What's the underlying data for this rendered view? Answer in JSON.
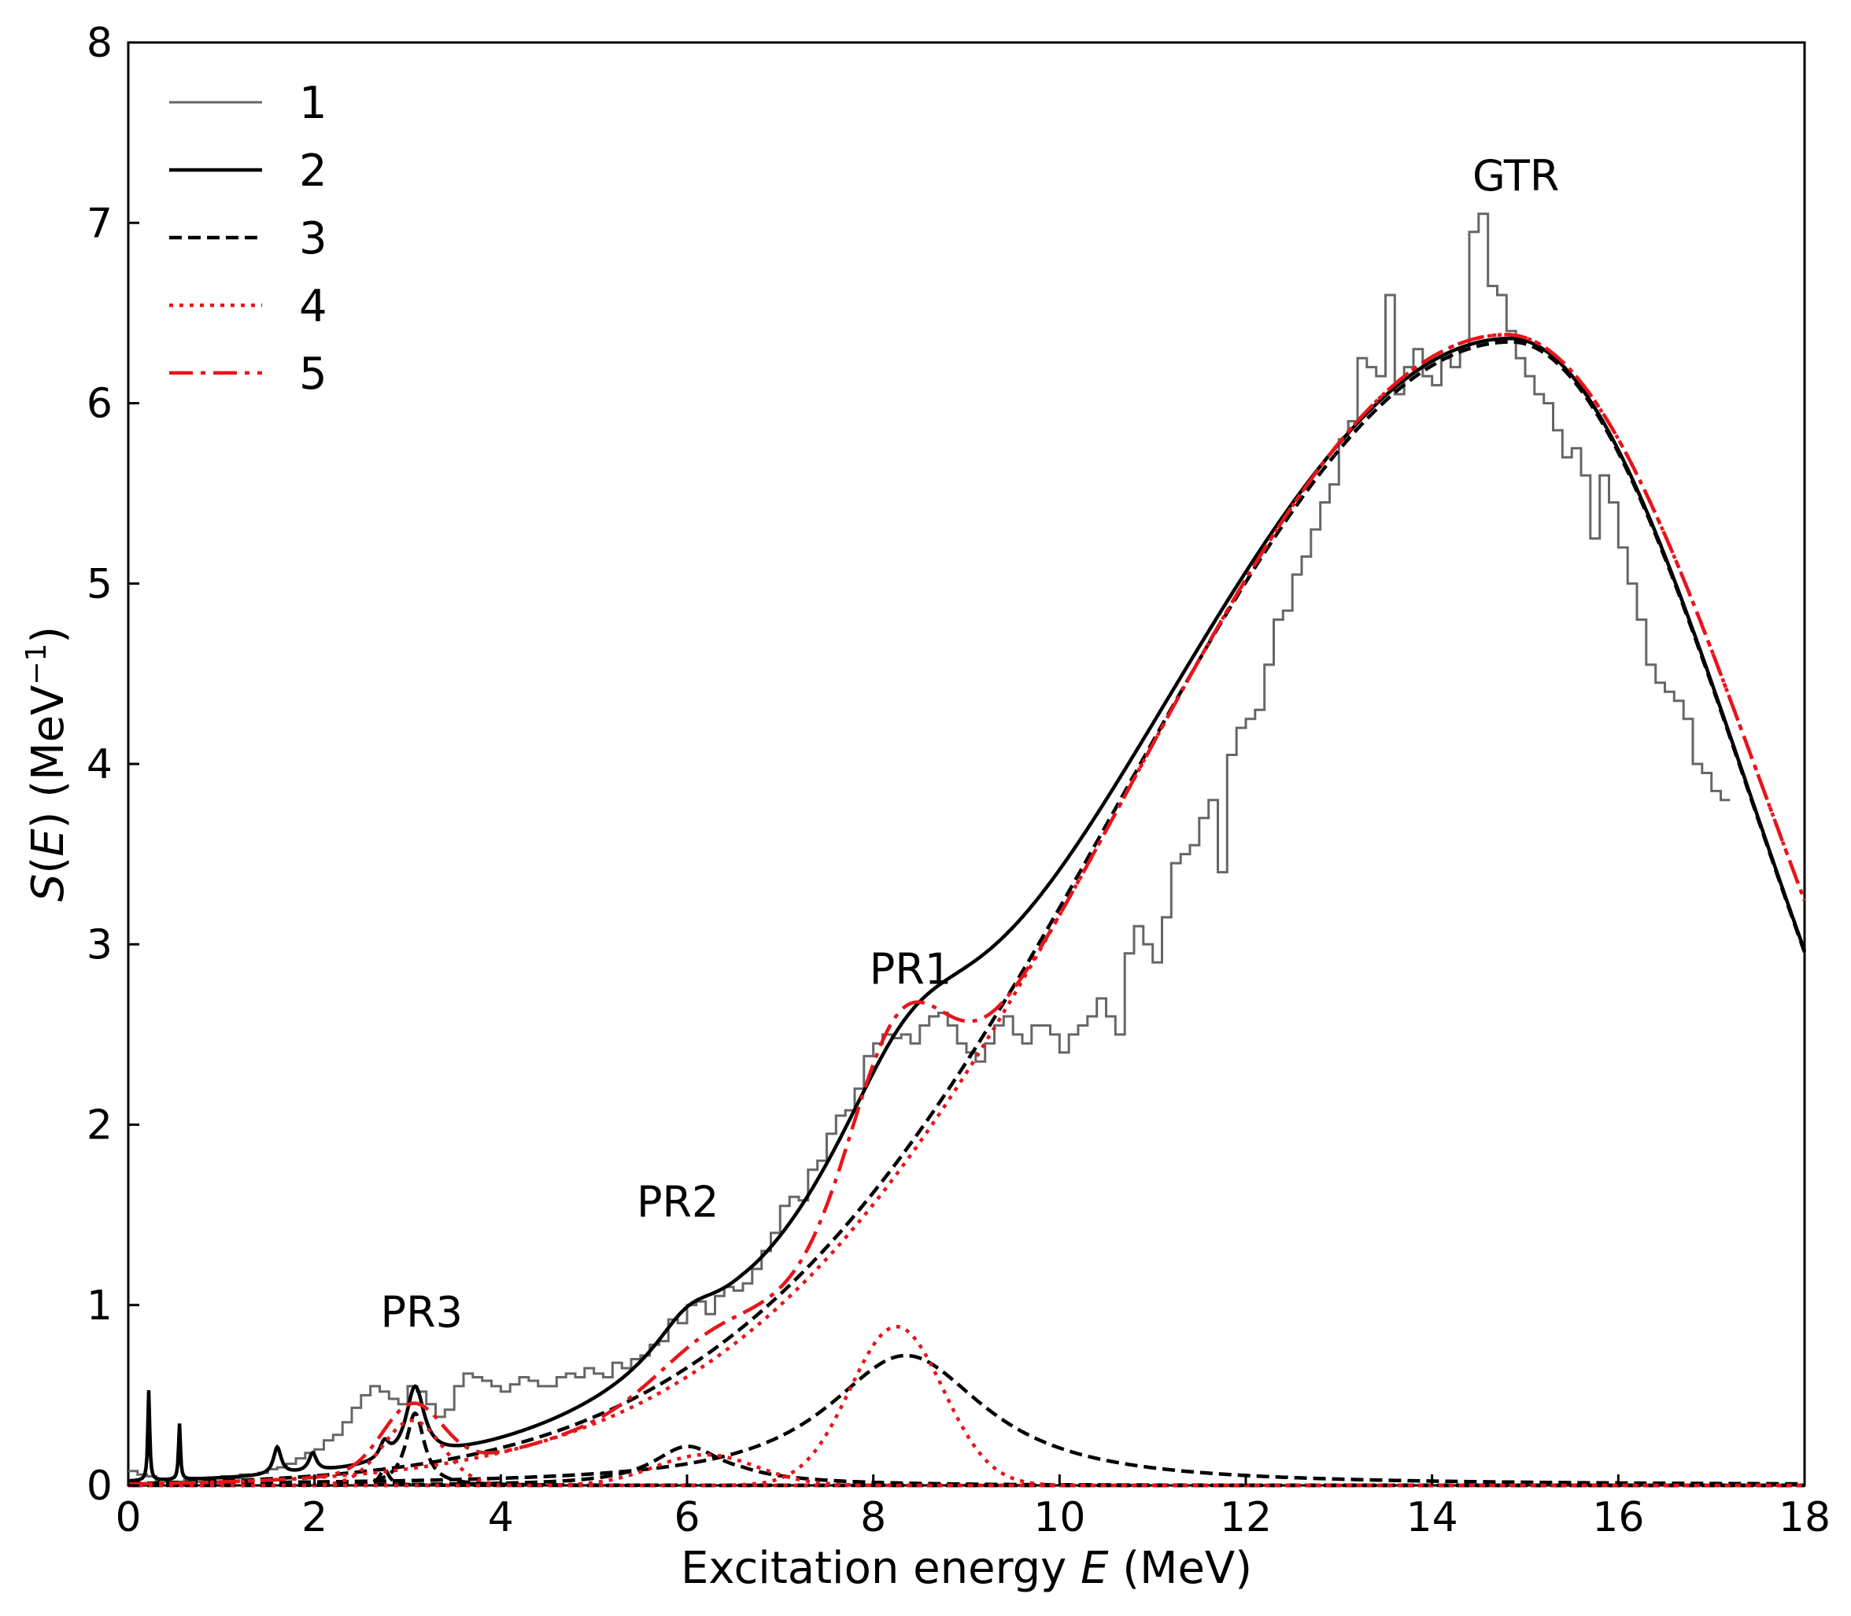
{
  "chart_data": {
    "type": "line",
    "xlabel_prefix": "Excitation energy ",
    "xlabel_var": "E",
    "xlabel_suffix": " (MeV)",
    "ylabel_var": "S",
    "ylabel_open": "(",
    "ylabel_arg": "E",
    "ylabel_close": ") (MeV",
    "ylabel_sup": "−1",
    "ylabel_end": ")",
    "xlim": [
      0,
      18
    ],
    "ylim": [
      0,
      8
    ],
    "xticks": [
      0,
      2,
      4,
      6,
      8,
      10,
      12,
      14,
      16,
      18
    ],
    "yticks": [
      0,
      1,
      2,
      3,
      4,
      5,
      6,
      7,
      8
    ],
    "grid": false,
    "legend_position": "top-left",
    "colors": {
      "gray": "#666666",
      "black": "#000000",
      "red": "#e8141a"
    },
    "legend": [
      {
        "label": "1",
        "color": "#666666",
        "style": "solid"
      },
      {
        "label": "2",
        "color": "#000000",
        "style": "solid"
      },
      {
        "label": "3",
        "color": "#000000",
        "style": "dashed"
      },
      {
        "label": "4",
        "color": "#e8141a",
        "style": "dotted"
      },
      {
        "label": "5",
        "color": "#e8141a",
        "style": "dashdot"
      }
    ],
    "annotations": [
      {
        "text": "GTR",
        "x": 14.9,
        "y": 7.18
      },
      {
        "text": "PR1",
        "x": 8.4,
        "y": 2.78
      },
      {
        "text": "PR2",
        "x": 5.9,
        "y": 1.49
      },
      {
        "text": "PR3",
        "x": 3.15,
        "y": 0.88
      }
    ],
    "series": [
      {
        "label": "1",
        "kind": "step",
        "color": "#666666",
        "style": "solid",
        "step": 0.1,
        "x_start": 0,
        "values": [
          0.08,
          0.06,
          0.05,
          0.03,
          0.02,
          0.02,
          0.03,
          0.02,
          0.03,
          0.04,
          0.05,
          0.04,
          0.06,
          0.06,
          0.07,
          0.09,
          0.1,
          0.12,
          0.15,
          0.18,
          0.2,
          0.25,
          0.28,
          0.35,
          0.43,
          0.5,
          0.55,
          0.52,
          0.48,
          0.45,
          0.55,
          0.52,
          0.45,
          0.38,
          0.42,
          0.55,
          0.62,
          0.6,
          0.58,
          0.55,
          0.52,
          0.56,
          0.6,
          0.58,
          0.55,
          0.55,
          0.6,
          0.62,
          0.6,
          0.65,
          0.62,
          0.6,
          0.68,
          0.65,
          0.7,
          0.72,
          0.78,
          0.8,
          0.92,
          0.9,
          1.0,
          1.02,
          0.95,
          1.05,
          1.1,
          1.08,
          1.12,
          1.2,
          1.3,
          1.4,
          1.55,
          1.6,
          1.58,
          1.75,
          1.8,
          1.95,
          2.05,
          2.08,
          2.2,
          2.38,
          2.45,
          2.5,
          2.48,
          2.5,
          2.45,
          2.55,
          2.6,
          2.62,
          2.55,
          2.45,
          2.4,
          2.35,
          2.45,
          2.55,
          2.6,
          2.5,
          2.45,
          2.55,
          2.55,
          2.5,
          2.4,
          2.5,
          2.55,
          2.6,
          2.7,
          2.6,
          2.5,
          2.95,
          3.1,
          3.0,
          2.9,
          3.15,
          3.45,
          3.5,
          3.55,
          3.7,
          3.8,
          3.4,
          4.05,
          4.2,
          4.25,
          4.3,
          4.55,
          4.8,
          4.85,
          5.05,
          5.15,
          5.3,
          5.45,
          5.55,
          5.8,
          5.9,
          6.25,
          6.2,
          6.15,
          6.6,
          6.05,
          6.2,
          6.3,
          6.15,
          6.1,
          6.25,
          6.2,
          6.3,
          6.95,
          7.05,
          6.65,
          6.6,
          6.4,
          6.25,
          6.15,
          6.05,
          6.0,
          5.85,
          5.7,
          5.75,
          5.6,
          5.25,
          5.6,
          5.45,
          5.2,
          5.0,
          4.8,
          4.55,
          4.45,
          4.4,
          4.35,
          4.25,
          4.0,
          3.95,
          3.85,
          3.8
        ]
      },
      {
        "label": "2",
        "kind": "model_total",
        "color": "#000000",
        "style": "solid"
      },
      {
        "label": "3",
        "kind": "model_components",
        "color": "#000000",
        "style": "dashed"
      },
      {
        "label": "4",
        "kind": "model_components",
        "color": "#e8141a",
        "style": "dotted"
      },
      {
        "label": "5",
        "kind": "model_total",
        "color": "#e8141a",
        "style": "dashdot"
      }
    ]
  }
}
